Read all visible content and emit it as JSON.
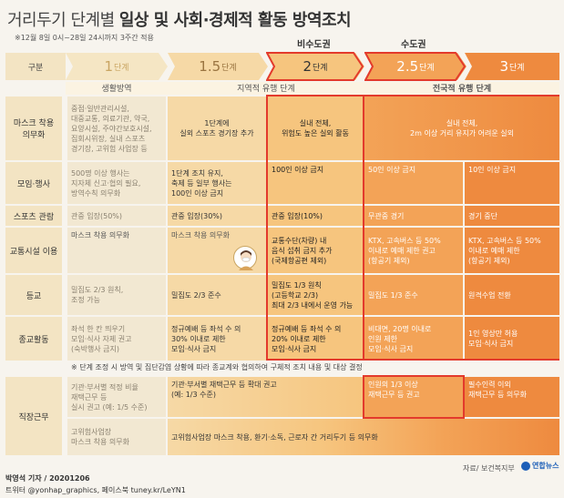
{
  "title_light": "거리두기 단계별 ",
  "title_bold": "일상 및 사회·경제적 활동 방역조치",
  "note": "※12월 8일 0시~28일 24시까지 3주간 적용",
  "regions": {
    "capital_non": "비수도권",
    "capital": "수도권"
  },
  "header": {
    "gubun": "구분"
  },
  "stages": [
    {
      "num": "1",
      "unit": "단계"
    },
    {
      "num": "1.5",
      "unit": "단계"
    },
    {
      "num": "2",
      "unit": "단계"
    },
    {
      "num": "2.5",
      "unit": "단계"
    },
    {
      "num": "3",
      "unit": "단계"
    }
  ],
  "groups": {
    "g1": "생활방역",
    "g2": "지역적 유행 단계",
    "g3": "전국적 유행 단계"
  },
  "rows": [
    {
      "label": "마스크 착용\n의무화",
      "c1": "중점·일반관리시설,\n대중교통, 의료기관, 약국,\n요양시설, 주야간보호시설,\n집회시위장, 실내 스포츠\n경기장, 고위험 사업장 등",
      "c2": "1단계에\n실외 스포츠 경기장 추가",
      "c3": "실내 전체,\n위험도 높은 실외 활동",
      "c45": "실내 전체,\n2m 이상 거리 유지가 어려운 실외"
    },
    {
      "label": "모임·행사",
      "c1": "500명 이상 행사는\n지자체 신고·협의 필요,\n방역수칙 의무화",
      "c2": "1단계 조치 유지,\n축제 등 일부 행사는\n100인 이상 금지",
      "c3": "100인 이상 금지",
      "c4": "50인 이상 금지",
      "c5": "10인 이상 금지"
    },
    {
      "label": "스포츠 관람",
      "c1": "관중 입장(50%)",
      "c2": "관중 입장(30%)",
      "c3": "관중 입장(10%)",
      "c4": "무관중 경기",
      "c5": "경기 중단"
    },
    {
      "label": "교통시설 이용",
      "c12": "마스크 착용 의무화",
      "c2b": "마스크 착용 의무화",
      "c3": "교통수단(차량) 내\n음식 섭취 금지 추가\n(국제항공편 제외)",
      "c4": "KTX, 고속버스 등 50%\n이내로 예매 제한 권고\n(항공기 제외)",
      "c5": "KTX, 고속버스 등 50%\n이내로 예매 제한\n(항공기 제외)"
    },
    {
      "label": "등교",
      "c1": "밀집도 2/3 원칙,\n조정 가능",
      "c2": "밀집도 2/3 준수",
      "c3": "밀집도 1/3 원칙\n(고등학교 2/3)\n최대 2/3 내에서 운영 가능",
      "c4": "밀집도 1/3 준수",
      "c5": "원격수업 전환"
    },
    {
      "label": "종교활동",
      "c1": "좌석 한 칸 띄우기\n모임·식사 자제 권고\n(숙박행사 금지)",
      "c2": "정규예배 등 좌석 수 의\n30% 이내로 제한\n모임·식사 금지",
      "c3": "정규예배 등 좌석 수 의\n20% 이내로 제한\n모임·식사 금지",
      "c4": "비대면, 20명 이내로\n인원 제한\n모임·식사 금지",
      "c5": "1인 영상만 허용\n모임·식사 금지"
    },
    {
      "label": "직장근무",
      "c1": "기관·부서별 적정 비율\n재택근무 등\n실시 권고 (예: 1/5 수준)",
      "c23": "기관·부서별 재택근무 등 확대 권고\n(예: 1/3 수준)",
      "c4": "인원의 1/3 이상\n재택근무 등 권고",
      "c5": "필수인력 이외\n재택근무 등 의무화",
      "c1b": "고위험사업장\n마스크 착용 의무화",
      "c25": "고위험사업장 마스크 착용, 환기·소독, 근로자 간 거리두기 등 의무화"
    }
  ],
  "religion_note": "※ 단계 조정 시 방역 및 집단감염 상황에 따라 종교계와 협의하여 구체적 조치 내용 및 대상 결정",
  "source": "자료/ 보건복지부",
  "logo": "연합뉴스",
  "byline": "박영석 기자 / 20201206",
  "social": "트위터 @yonhap_graphics, 페이스북 tuney.kr/LeYN1"
}
